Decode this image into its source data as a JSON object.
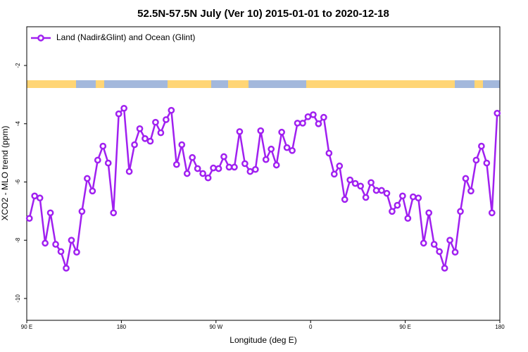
{
  "chart_data": {
    "type": "line",
    "title": "52.5N-57.5N July (Ver 10)   2015-01-01 to 2020-12-18",
    "xlabel": "Longitude (deg E)",
    "ylabel": "XCO2 - MLO trend (ppm)",
    "x": [
      92.5,
      97.5,
      102.5,
      107.5,
      112.5,
      117.5,
      122.5,
      127.5,
      132.5,
      137.5,
      142.5,
      147.5,
      152.5,
      157.5,
      162.5,
      167.5,
      172.5,
      177.5,
      182.5,
      187.5,
      192.5,
      197.5,
      202.5,
      207.5,
      212.5,
      217.5,
      222.5,
      227.5,
      232.5,
      237.5,
      242.5,
      247.5,
      252.5,
      257.5,
      262.5,
      267.5,
      272.5,
      277.5,
      282.5,
      287.5,
      292.5,
      297.5,
      302.5,
      307.5,
      312.5,
      317.5,
      322.5,
      327.5,
      332.5,
      337.5,
      342.5,
      347.5,
      352.5,
      357.5,
      362.5,
      367.5,
      372.5,
      377.5,
      382.5,
      387.5,
      392.5,
      397.5,
      402.5,
      407.5,
      412.5,
      417.5,
      422.5,
      427.5,
      432.5,
      437.5,
      442.5,
      447.5,
      452.5,
      457.5,
      462.5,
      467.5,
      472.5,
      477.5,
      482.5,
      487.5,
      492.5,
      497.5,
      502.5,
      507.5,
      512.5,
      517.5,
      522.5,
      527.5,
      532.5,
      537.5
    ],
    "series": [
      {
        "name": "Land (Nadir&Glint) and Ocean (Glint)",
        "color": "#a020f0",
        "values": [
          -7.25,
          -6.48,
          -6.55,
          -8.1,
          -7.06,
          -8.14,
          -8.39,
          -8.96,
          -8.0,
          -8.41,
          -7.01,
          -5.88,
          -6.31,
          -5.25,
          -4.77,
          -5.35,
          -7.06,
          -3.66,
          -3.47,
          -5.64,
          -4.72,
          -4.17,
          -4.51,
          -4.6,
          -3.95,
          -4.31,
          -3.86,
          -3.54,
          -5.4,
          -4.72,
          -5.71,
          -5.16,
          -5.54,
          -5.71,
          -5.86,
          -5.52,
          -5.54,
          -5.13,
          -5.49,
          -5.49,
          -4.27,
          -5.37,
          -5.64,
          -5.57,
          -4.24,
          -5.23,
          -4.87,
          -5.42,
          -4.29,
          -4.82,
          -4.92,
          -3.98,
          -3.98,
          -3.76,
          -3.69,
          -4.0,
          -3.78,
          -5.01,
          -5.73,
          -5.45,
          -6.6,
          -5.93,
          -6.05,
          -6.14,
          -6.53,
          -6.02,
          -6.29,
          -6.29,
          -6.39,
          -7.01,
          -6.8,
          -6.48,
          -7.25,
          -6.51,
          -6.55,
          -8.1,
          -7.06,
          -8.14,
          -8.39,
          -8.96,
          -8.0,
          -8.41,
          -7.01,
          -5.88,
          -6.31,
          -5.25,
          -4.77,
          -5.35,
          -7.06,
          -3.64
        ]
      }
    ],
    "xlim": [
      90,
      540
    ],
    "xticks": [
      {
        "value": 90,
        "label": "90 E"
      },
      {
        "value": 180,
        "label": "180"
      },
      {
        "value": 270,
        "label": "90 W"
      },
      {
        "value": 360,
        "label": "0"
      },
      {
        "value": 450,
        "label": "90 E"
      },
      {
        "value": 540,
        "label": "180"
      }
    ],
    "ylim": [
      -10.75,
      -0.67
    ],
    "yticks": [
      -2,
      -4,
      -6,
      -8,
      -10
    ],
    "legend": "top-left"
  }
}
